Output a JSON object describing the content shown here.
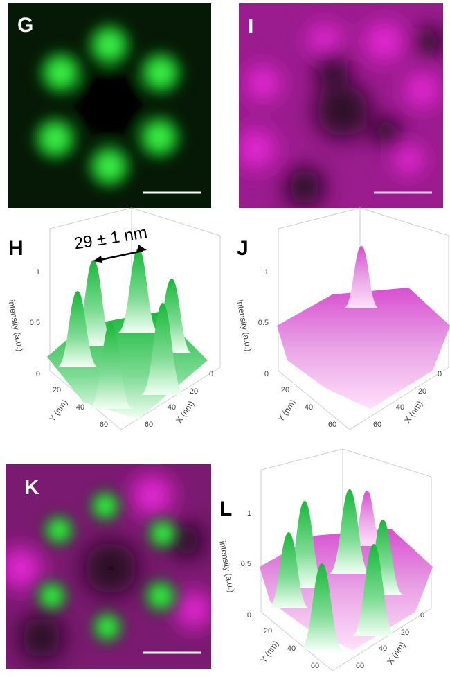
{
  "images": [
    {
      "label": "G"
    },
    {
      "label": "I"
    },
    {
      "label": "K"
    }
  ],
  "surface_plots": [
    {
      "label": "H",
      "annotation": "29 ± 1 nm",
      "z_label": "intensity (a.u.)",
      "y_label": "Y (nm)",
      "x_label": "X (nm)",
      "z_ticks": [
        1,
        0.5,
        0
      ],
      "y_ticks": [
        20,
        40,
        60
      ],
      "x_ticks": [
        0,
        20,
        40,
        60
      ]
    },
    {
      "label": "J",
      "z_label": "intensity (a.u.)",
      "y_label": "Y (nm)",
      "x_label": "X (nm)",
      "z_ticks": [
        1,
        0.5,
        0
      ],
      "y_ticks": [
        20,
        40,
        60
      ],
      "x_ticks": [
        0,
        20,
        40,
        60
      ]
    },
    {
      "label": "L",
      "z_label": "intensity (a.u.)",
      "y_label": "Y (nm)",
      "x_label": "X (nm)",
      "z_ticks": [
        1,
        0.5,
        0
      ],
      "y_ticks": [
        20,
        40,
        60
      ],
      "x_ticks": [
        0,
        20,
        40,
        60
      ]
    }
  ]
}
